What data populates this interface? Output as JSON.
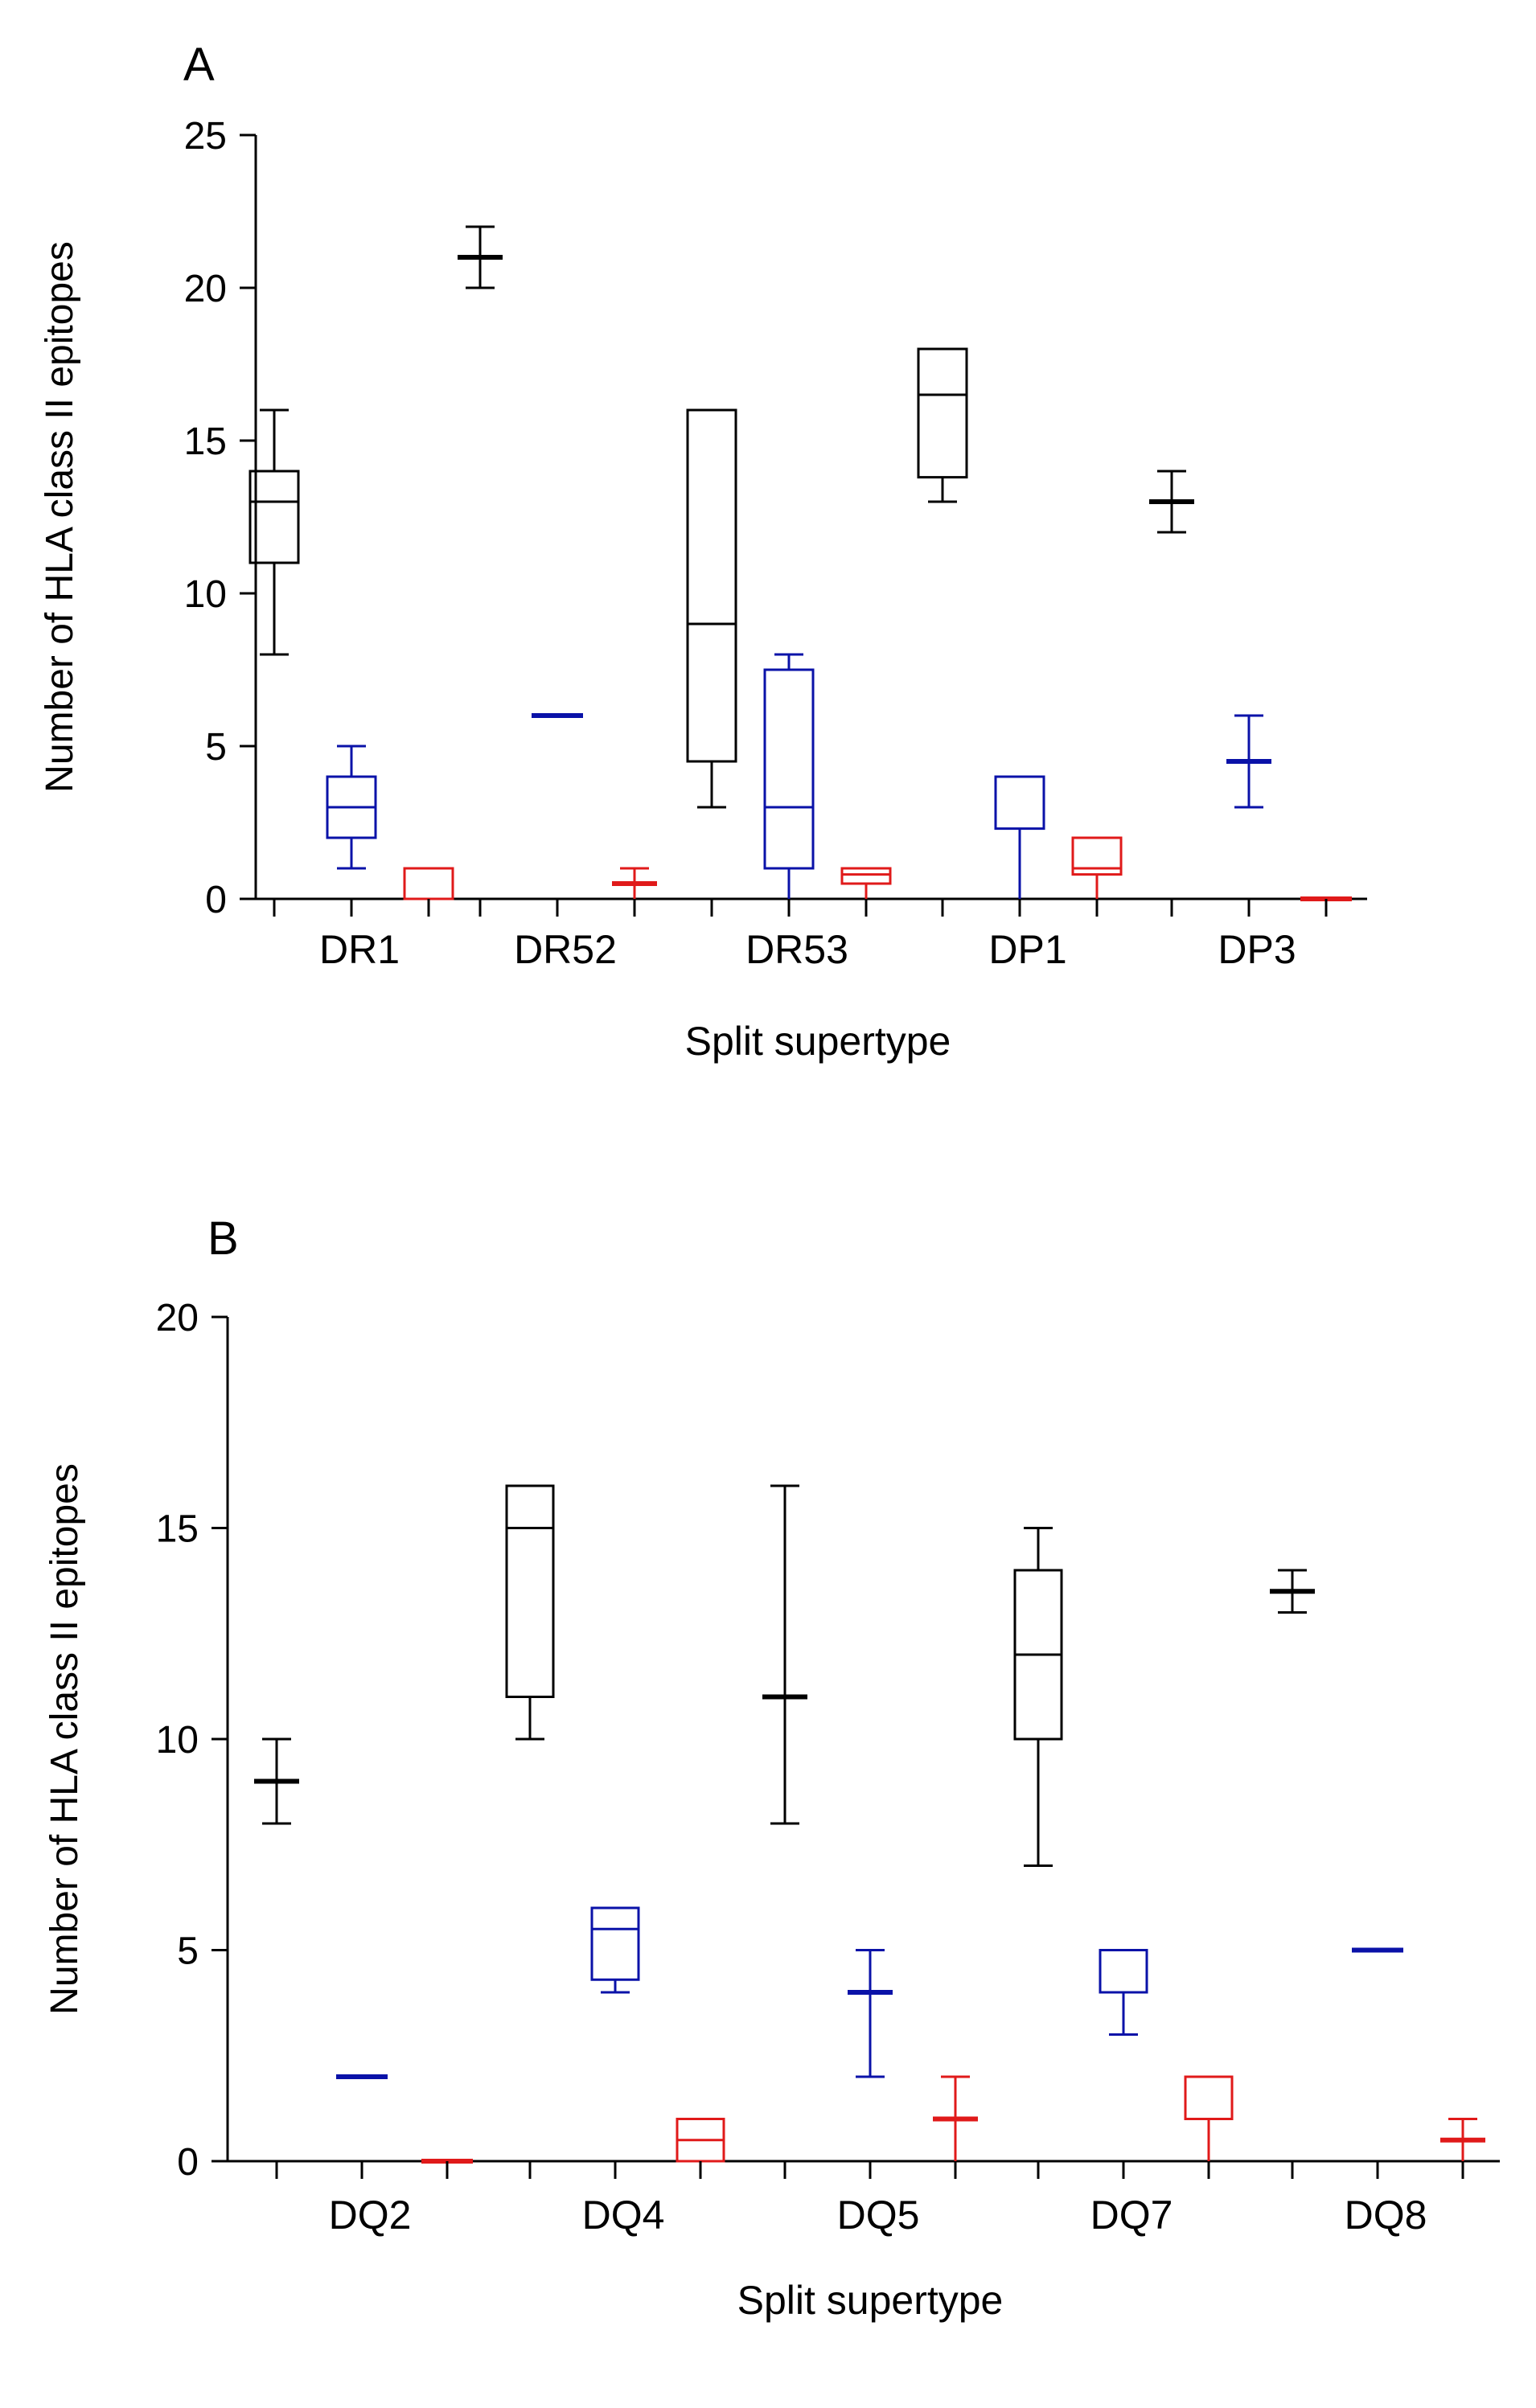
{
  "colors": {
    "black": "#000000",
    "blue": "#0a12a8",
    "red": "#e01a1a",
    "axis": "#000000"
  },
  "chart_data": [
    {
      "type": "box",
      "panel_label": "A",
      "title": "",
      "xlabel": "Split supertype",
      "ylabel": "Number of HLA class II epitopes",
      "ylim": [
        0,
        25
      ],
      "yticks": [
        "0",
        "5",
        "10",
        "15",
        "20",
        "25"
      ],
      "categories": [
        "DR1",
        "DR52",
        "DR53",
        "DP1",
        "DP3"
      ],
      "series": [
        {
          "name": "black",
          "color": "#000000",
          "boxes": [
            {
              "min": 8,
              "q1": 11,
              "median": 13,
              "q3": 14,
              "max": 16
            },
            {
              "min": 20,
              "q1": 21,
              "median": 21,
              "q3": 21,
              "max": 22
            },
            {
              "min": 3,
              "q1": 4.5,
              "median": 9,
              "q3": 16,
              "max": 16
            },
            {
              "min": 13,
              "q1": 13.8,
              "median": 16.5,
              "q3": 18,
              "max": 18
            },
            {
              "min": 12,
              "q1": 13,
              "median": 13,
              "q3": 13,
              "max": 14
            }
          ]
        },
        {
          "name": "blue",
          "color": "#0a12a8",
          "boxes": [
            {
              "min": 1,
              "q1": 2,
              "median": 3,
              "q3": 4,
              "max": 5
            },
            {
              "min": 6,
              "q1": 6,
              "median": 6,
              "q3": 6,
              "max": 6
            },
            {
              "min": 0,
              "q1": 1,
              "median": 3,
              "q3": 7.5,
              "max": 8
            },
            {
              "min": 0,
              "q1": 2.3,
              "median": 4,
              "q3": 4,
              "max": 4
            },
            {
              "min": 3,
              "q1": 4.5,
              "median": 4.5,
              "q3": 4.5,
              "max": 6
            }
          ]
        },
        {
          "name": "red",
          "color": "#e01a1a",
          "boxes": [
            {
              "min": 0,
              "q1": 0,
              "median": 1,
              "q3": 1,
              "max": 1
            },
            {
              "min": 0,
              "q1": 0.5,
              "median": 0.5,
              "q3": 0.5,
              "max": 1
            },
            {
              "min": 0,
              "q1": 0.5,
              "median": 0.8,
              "q3": 1,
              "max": 1
            },
            {
              "min": 0,
              "q1": 0.8,
              "median": 1,
              "q3": 2,
              "max": 2
            },
            {
              "min": 0,
              "q1": 0,
              "median": 0,
              "q3": 0,
              "max": 0
            }
          ]
        }
      ]
    },
    {
      "type": "box",
      "panel_label": "B",
      "title": "",
      "xlabel": "Split supertype",
      "ylabel": "Number of HLA class II epitopes",
      "ylim": [
        0,
        20
      ],
      "yticks": [
        "0",
        "5",
        "10",
        "15",
        "20"
      ],
      "categories": [
        "DQ2",
        "DQ4",
        "DQ5",
        "DQ7",
        "DQ8"
      ],
      "series": [
        {
          "name": "black",
          "color": "#000000",
          "boxes": [
            {
              "min": 8,
              "q1": 9,
              "median": 9,
              "q3": 9,
              "max": 10
            },
            {
              "min": 10,
              "q1": 11,
              "median": 15,
              "q3": 16,
              "max": 16
            },
            {
              "min": 8,
              "q1": 11,
              "median": 11,
              "q3": 11,
              "max": 16
            },
            {
              "min": 7,
              "q1": 10,
              "median": 12,
              "q3": 14,
              "max": 15
            },
            {
              "min": 13,
              "q1": 13.5,
              "median": 13.5,
              "q3": 13.5,
              "max": 14
            }
          ]
        },
        {
          "name": "blue",
          "color": "#0a12a8",
          "boxes": [
            {
              "min": 2,
              "q1": 2,
              "median": 2,
              "q3": 2,
              "max": 2
            },
            {
              "min": 4,
              "q1": 4.3,
              "median": 5.5,
              "q3": 6,
              "max": 6
            },
            {
              "min": 2,
              "q1": 4,
              "median": 4,
              "q3": 4,
              "max": 5
            },
            {
              "min": 3,
              "q1": 4,
              "median": 5,
              "q3": 5,
              "max": 5
            },
            {
              "min": 5,
              "q1": 5,
              "median": 5,
              "q3": 5,
              "max": 5
            }
          ]
        },
        {
          "name": "red",
          "color": "#e01a1a",
          "boxes": [
            {
              "min": 0,
              "q1": 0,
              "median": 0,
              "q3": 0,
              "max": 0
            },
            {
              "min": 0,
              "q1": 0,
              "median": 0.5,
              "q3": 1,
              "max": 1
            },
            {
              "min": 0,
              "q1": 1,
              "median": 1,
              "q3": 1,
              "max": 2
            },
            {
              "min": 0,
              "q1": 1,
              "median": 1,
              "q3": 2,
              "max": 2
            },
            {
              "min": 0,
              "q1": 0.5,
              "median": 0.5,
              "q3": 0.5,
              "max": 1
            }
          ]
        }
      ]
    }
  ]
}
